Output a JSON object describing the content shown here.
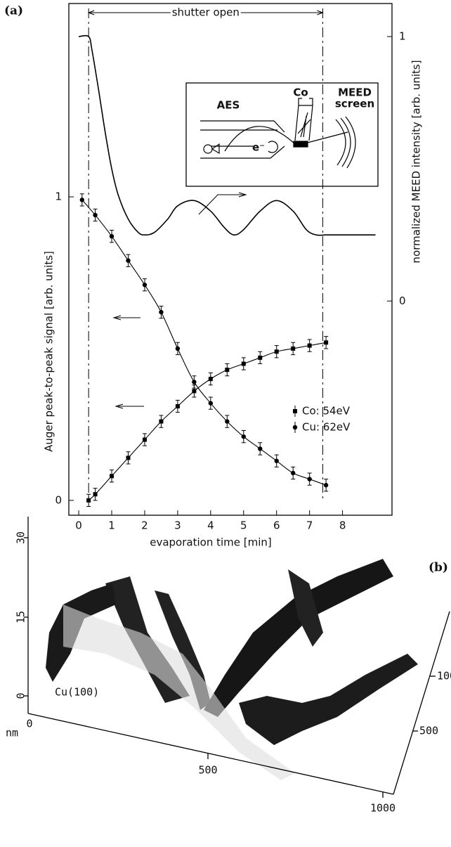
{
  "panel_labels": [
    "(a)",
    "(b)"
  ],
  "chart_data": {
    "type": "line",
    "xlabel": "evaporation time [min]",
    "ylabel": "Auger peak-to-peak signal [arb. units]",
    "y2label": "normalized MEED intensity [arb. units]",
    "xlim": [
      -0.3,
      9.5
    ],
    "xticks": [
      0,
      1,
      2,
      3,
      4,
      5,
      6,
      7,
      8
    ],
    "ylim": [
      -0.049,
      1.637
    ],
    "yticks": [
      0,
      1
    ],
    "y2lim": [
      -0.81,
      1.125
    ],
    "y2ticks": [
      0,
      1
    ],
    "legend": "right",
    "annotation": {
      "text": "shutter open",
      "x": [
        0.3,
        7.4
      ]
    },
    "series": [
      {
        "name": "Co: 54eV",
        "color": "#000000",
        "marker": "square",
        "x": [
          0.3,
          0.5,
          1,
          1.5,
          2,
          2.5,
          3,
          3.5,
          4,
          4.5,
          5,
          5.5,
          6,
          6.5,
          7,
          7.5
        ],
        "values": [
          0.0,
          0.02,
          0.08,
          0.14,
          0.2,
          0.26,
          0.31,
          0.36,
          0.4,
          0.43,
          0.45,
          0.47,
          0.49,
          0.5,
          0.51,
          0.52
        ],
        "errors": [
          0.02,
          0.02,
          0.02,
          0.02,
          0.02,
          0.02,
          0.02,
          0.02,
          0.02,
          0.02,
          0.02,
          0.02,
          0.02,
          0.02,
          0.02,
          0.02
        ]
      },
      {
        "name": "Cu: 62eV",
        "color": "#000000",
        "marker": "circle",
        "x": [
          0.1,
          0.5,
          1,
          1.5,
          2,
          2.5,
          3,
          3.5,
          4,
          4.5,
          5,
          5.5,
          6,
          6.5,
          7,
          7.5
        ],
        "values": [
          0.99,
          0.94,
          0.87,
          0.79,
          0.71,
          0.62,
          0.5,
          0.39,
          0.32,
          0.26,
          0.21,
          0.17,
          0.13,
          0.09,
          0.07,
          0.05
        ],
        "errors": [
          0.02,
          0.02,
          0.02,
          0.02,
          0.02,
          0.02,
          0.02,
          0.02,
          0.02,
          0.02,
          0.02,
          0.02,
          0.02,
          0.02,
          0.02,
          0.02
        ]
      },
      {
        "name": "MEED",
        "color": "#000000",
        "axis": "y2",
        "x": [
          0,
          0.3,
          0.4,
          0.6,
          0.8,
          1.0,
          1.2,
          1.5,
          1.8,
          2.0,
          2.3,
          2.7,
          3.0,
          3.5,
          4.0,
          4.4,
          4.7,
          5.0,
          5.5,
          6.0,
          6.5,
          6.9,
          7.2,
          7.5,
          8.0,
          9.0
        ],
        "values": [
          1.0,
          1.0,
          0.95,
          0.8,
          0.64,
          0.5,
          0.4,
          0.31,
          0.26,
          0.25,
          0.26,
          0.31,
          0.36,
          0.38,
          0.34,
          0.28,
          0.25,
          0.27,
          0.34,
          0.38,
          0.34,
          0.27,
          0.25,
          0.25,
          0.25,
          0.25
        ]
      }
    ]
  },
  "inset": {
    "labels": [
      "AES",
      "Co",
      "MEED",
      "screen",
      "e⁻"
    ]
  },
  "stm_image": {
    "label": "Cu(100)",
    "unit": "nm",
    "z_ticks": [
      "0",
      "15",
      "30"
    ],
    "x_ticks": [
      "0",
      "500",
      "1000"
    ],
    "y_ticks": [
      "500",
      "1000"
    ]
  }
}
